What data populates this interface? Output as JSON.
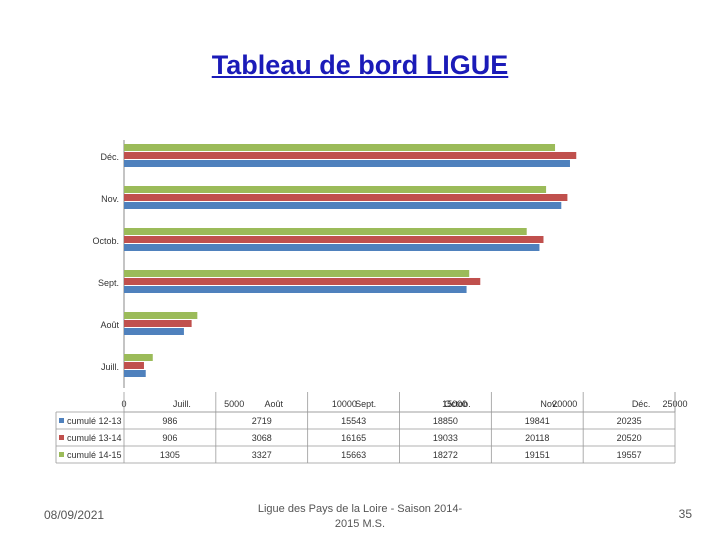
{
  "title": "Tableau de bord LIGUE",
  "footer": {
    "date": "08/09/2021",
    "center": "Ligue des Pays de la Loire - Saison 2014-2015 M.S.",
    "page": "35"
  },
  "chart_data": {
    "type": "bar",
    "orientation": "horizontal",
    "categories": [
      "Juill.",
      "Août",
      "Sept.",
      "Octob.",
      "Nov.",
      "Déc."
    ],
    "series": [
      {
        "name": "cumulé 12-13",
        "color": "#4f81bd",
        "values": [
          986,
          2719,
          15543,
          18850,
          19841,
          20235
        ]
      },
      {
        "name": "cumulé 13-14",
        "color": "#c0504d",
        "values": [
          906,
          3068,
          16165,
          19033,
          20118,
          20520
        ]
      },
      {
        "name": "cumulé 14-15",
        "color": "#9bbb59",
        "values": [
          1305,
          3327,
          15663,
          18272,
          19151,
          19557
        ]
      }
    ],
    "xlim": [
      0,
      25000
    ],
    "xticks": [
      "0",
      "5000",
      "10000",
      "15000",
      "20000",
      "25000"
    ],
    "data_table": true,
    "legend": "data-table"
  }
}
